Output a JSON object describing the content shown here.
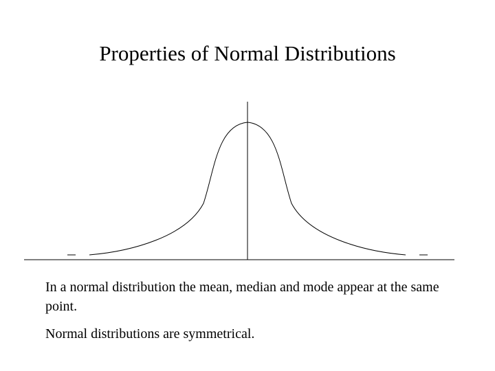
{
  "slide": {
    "title": "Properties of Normal Distributions",
    "paragraphs": [
      "In a normal distribution the mean, median and mode appear at the same point.",
      "Normal distributions are symmetrical."
    ]
  },
  "figure": {
    "curve_type": "bell-curve",
    "line_color": "#000000",
    "background": "#ffffff"
  }
}
